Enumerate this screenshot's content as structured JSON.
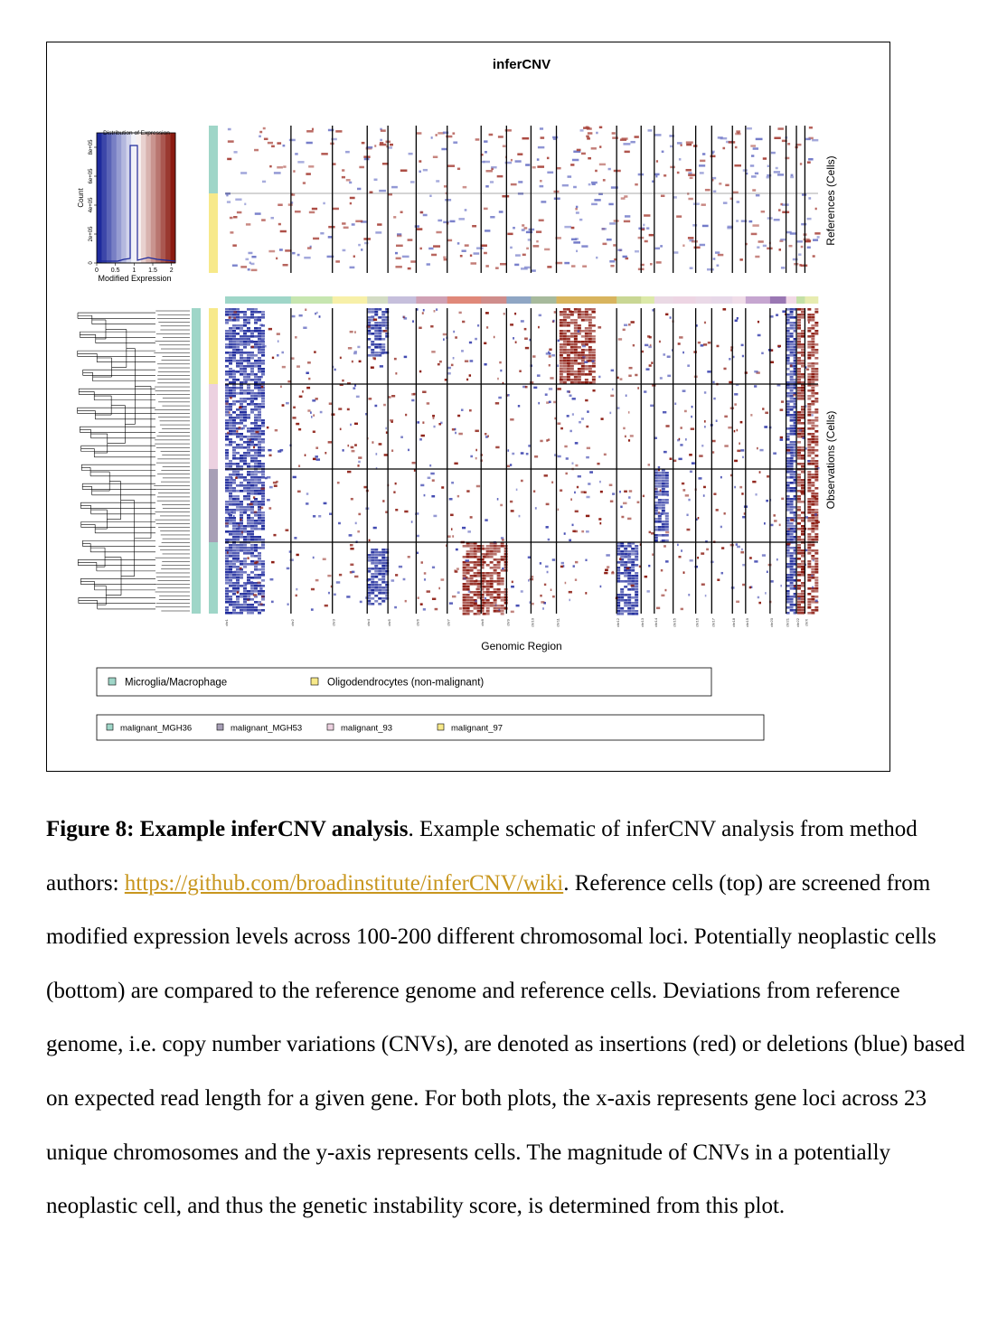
{
  "figure": {
    "title": "inferCNV",
    "histogram": {
      "title": "Distribution of Expression",
      "ylabel": "Count",
      "yticks": [
        "0",
        "2e+05",
        "4e+05",
        "6e+05",
        "8e+05"
      ],
      "xticks": [
        "0",
        "0.5",
        "1",
        "1.5",
        "2"
      ],
      "xlabel": "Modified Expression"
    },
    "right_labels": {
      "references": "References (Cells)",
      "observations": "Observations (Cells)"
    },
    "xlabel": "Genomic Region",
    "chromosomes": [
      "chr1",
      "chr2",
      "chr3",
      "chr4",
      "chr5",
      "chr6",
      "chr7",
      "chr8",
      "chr9",
      "chr10",
      "chr11",
      "chr12",
      "chr13",
      "chr14",
      "chr15",
      "chr16",
      "chr17",
      "chr18",
      "chr19",
      "chr20",
      "chr21",
      "chr22",
      "chrX"
    ],
    "legend_references": [
      {
        "label": "Microglia/Macrophage",
        "color": "#9fd6c8"
      },
      {
        "label": "Oligodendrocytes (non-malignant)",
        "color": "#f7e98a"
      }
    ],
    "legend_observations": [
      {
        "label": "malignant_MGH36",
        "color": "#9fd6c8"
      },
      {
        "label": "malignant_MGH53",
        "color": "#a79fb6"
      },
      {
        "label": "malignant_93",
        "color": "#ecd1e0"
      },
      {
        "label": "malignant_97",
        "color": "#f7e98a"
      }
    ],
    "colors": {
      "deletion": "#1e2a9c",
      "insertion": "#8b1a10"
    }
  },
  "caption": {
    "label": "Figure 8: Example inferCNV analysis",
    "after_label": ". Example schematic of inferCNV analysis from method authors: ",
    "link": "https://github.com/broadinstitute/inferCNV/wiki",
    "rest": ". Reference cells (top) are screened from modified expression levels across 100-200 different chromosomal loci. Potentially neoplastic cells (bottom) are compared to the reference genome and reference cells. Deviations from reference genome, i.e. copy number variations (CNVs), are denoted as insertions (red) or deletions (blue) based on expected read length for a given gene. For both plots, the x-axis represents gene loci across 23 unique chromosomes and the y-axis represents cells. The magnitude of CNVs in a potentially neoplastic cell, and thus the genetic instability score, is determined from this plot."
  }
}
